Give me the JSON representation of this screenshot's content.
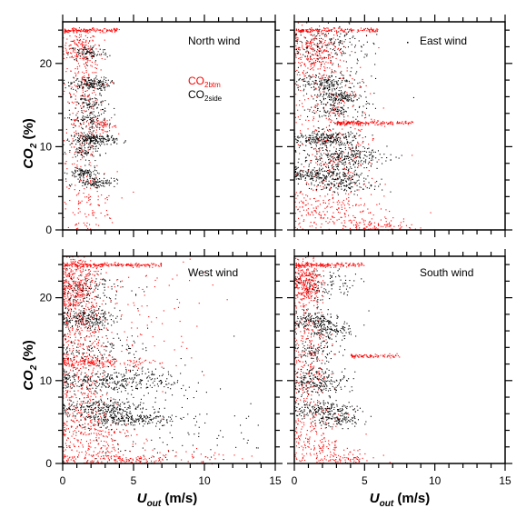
{
  "chart_data": {
    "type": "scatter",
    "xlabel_main": "U",
    "xlabel_sub": "out",
    "xlabel_unit": " (m/s)",
    "ylabel_main": "CO",
    "ylabel_sub": "2",
    "ylabel_unit": " (%)",
    "xlim": [
      0,
      15
    ],
    "ylim": [
      0,
      25
    ],
    "xticks": [
      0,
      5,
      10,
      15
    ],
    "yticks": [
      0,
      10,
      20
    ],
    "colors": {
      "btm": "#ff0000",
      "side": "#000000"
    },
    "legend": {
      "btm_main": "CO",
      "btm_sub": "2btm",
      "side_main": "CO",
      "side_sub": "2side",
      "placement": "top-panel North wind, right"
    },
    "panels": [
      {
        "title": "North wind",
        "side": [
          {
            "x": 1.8,
            "y": 21.3,
            "sx": 0.7,
            "sy": 0.5,
            "n": 90
          },
          {
            "x": 1.9,
            "y": 17.6,
            "sx": 0.7,
            "sy": 0.4,
            "n": 170
          },
          {
            "x": 2.0,
            "y": 15.2,
            "sx": 0.7,
            "sy": 0.6,
            "n": 80
          },
          {
            "x": 1.8,
            "y": 13.3,
            "sx": 0.7,
            "sy": 0.5,
            "n": 90
          },
          {
            "x": 2.2,
            "y": 10.9,
            "sx": 0.8,
            "sy": 0.35,
            "n": 210
          },
          {
            "x": 1.6,
            "y": 9.4,
            "sx": 0.6,
            "sy": 0.4,
            "n": 60
          },
          {
            "x": 1.4,
            "y": 6.9,
            "sx": 0.5,
            "sy": 0.35,
            "n": 90
          },
          {
            "x": 2.3,
            "y": 5.8,
            "sx": 0.7,
            "sy": 0.3,
            "n": 110
          }
        ],
        "btm": [
          {
            "x": 1.2,
            "y": 22.0,
            "sx": 0.6,
            "sy": 0.9,
            "n": 120
          },
          {
            "x": 1.5,
            "y": 18.5,
            "sx": 0.7,
            "sy": 2.5,
            "n": 150
          },
          {
            "x": 2.8,
            "y": 12.5,
            "sx": 0.5,
            "sy": 0.35,
            "n": 60
          },
          {
            "x": 1.3,
            "y": 11.0,
            "sx": 0.7,
            "sy": 3.0,
            "n": 130
          },
          {
            "x": 1.8,
            "y": 3.0,
            "sx": 1.0,
            "sy": 2.0,
            "n": 120
          }
        ],
        "lines": [
          {
            "x0": 0.1,
            "x1": 4.0,
            "y": 24.0,
            "n": 150
          }
        ]
      },
      {
        "title": "East wind",
        "side": [
          {
            "x": 2.5,
            "y": 22.5,
            "sx": 1.5,
            "sy": 1.0,
            "n": 120
          },
          {
            "x": 2.0,
            "y": 17.8,
            "sx": 1.0,
            "sy": 0.5,
            "n": 160
          },
          {
            "x": 3.0,
            "y": 16.0,
            "sx": 0.8,
            "sy": 0.4,
            "n": 130
          },
          {
            "x": 3.2,
            "y": 14.5,
            "sx": 1.0,
            "sy": 0.6,
            "n": 110
          },
          {
            "x": 2.2,
            "y": 11.0,
            "sx": 1.2,
            "sy": 0.5,
            "n": 260
          },
          {
            "x": 3.5,
            "y": 8.8,
            "sx": 1.5,
            "sy": 0.6,
            "n": 250
          },
          {
            "x": 2.0,
            "y": 6.8,
            "sx": 1.3,
            "sy": 0.5,
            "n": 230
          },
          {
            "x": 3.5,
            "y": 5.5,
            "sx": 1.4,
            "sy": 0.5,
            "n": 140
          },
          {
            "x": 3.0,
            "y": 20.0,
            "sx": 1.8,
            "sy": 3.0,
            "n": 90
          }
        ],
        "btm": [
          {
            "x": 1.5,
            "y": 21.5,
            "sx": 1.0,
            "sy": 1.6,
            "n": 260
          },
          {
            "x": 2.5,
            "y": 15.0,
            "sx": 1.4,
            "sy": 4.0,
            "n": 210
          },
          {
            "x": 3.0,
            "y": 8.0,
            "sx": 1.5,
            "sy": 3.0,
            "n": 170
          },
          {
            "x": 2.5,
            "y": 2.0,
            "sx": 2.0,
            "sy": 1.5,
            "n": 230
          },
          {
            "x": 6.0,
            "y": 0.4,
            "sx": 1.2,
            "sy": 0.4,
            "n": 110
          }
        ],
        "lines": [
          {
            "x0": 0.1,
            "x1": 6.0,
            "y": 24.0,
            "n": 150
          },
          {
            "x0": 3.0,
            "x1": 8.5,
            "y": 12.9,
            "n": 200
          }
        ]
      },
      {
        "title": "West wind",
        "side": [
          {
            "x": 1.8,
            "y": 21.0,
            "sx": 1.5,
            "sy": 1.0,
            "n": 130
          },
          {
            "x": 1.6,
            "y": 17.5,
            "sx": 1.0,
            "sy": 0.6,
            "n": 220
          },
          {
            "x": 2.5,
            "y": 14.0,
            "sx": 1.8,
            "sy": 1.0,
            "n": 110
          },
          {
            "x": 3.5,
            "y": 10.0,
            "sx": 2.5,
            "sy": 0.7,
            "n": 330
          },
          {
            "x": 2.5,
            "y": 6.8,
            "sx": 1.5,
            "sy": 0.5,
            "n": 220
          },
          {
            "x": 4.5,
            "y": 5.5,
            "sx": 1.8,
            "sy": 0.5,
            "n": 270
          },
          {
            "x": 6.5,
            "y": 4.5,
            "sx": 3.5,
            "sy": 4.0,
            "n": 160
          }
        ],
        "btm": [
          {
            "x": 1.0,
            "y": 21.5,
            "sx": 0.8,
            "sy": 2.2,
            "n": 420
          },
          {
            "x": 1.3,
            "y": 14.0,
            "sx": 1.0,
            "sy": 3.0,
            "n": 230
          },
          {
            "x": 2.5,
            "y": 12.3,
            "sx": 2.0,
            "sy": 0.3,
            "n": 170
          },
          {
            "x": 1.3,
            "y": 8.0,
            "sx": 1.0,
            "sy": 3.0,
            "n": 200
          },
          {
            "x": 2.0,
            "y": 3.0,
            "sx": 1.5,
            "sy": 2.0,
            "n": 250
          },
          {
            "x": 5.0,
            "y": 0.5,
            "sx": 3.0,
            "sy": 0.5,
            "n": 200
          },
          {
            "x": 4.5,
            "y": 18.0,
            "sx": 3.0,
            "sy": 4.0,
            "n": 120
          }
        ],
        "lines": [
          {
            "x0": 0.1,
            "x1": 7.0,
            "y": 24.0,
            "n": 220
          }
        ]
      },
      {
        "title": "South wind",
        "side": [
          {
            "x": 2.2,
            "y": 21.5,
            "sx": 1.2,
            "sy": 1.0,
            "n": 100
          },
          {
            "x": 1.5,
            "y": 17.3,
            "sx": 0.8,
            "sy": 0.6,
            "n": 160
          },
          {
            "x": 2.5,
            "y": 16.0,
            "sx": 0.8,
            "sy": 0.5,
            "n": 110
          },
          {
            "x": 1.5,
            "y": 13.5,
            "sx": 0.8,
            "sy": 0.6,
            "n": 90
          },
          {
            "x": 1.8,
            "y": 10.0,
            "sx": 1.0,
            "sy": 0.8,
            "n": 210
          },
          {
            "x": 2.0,
            "y": 6.5,
            "sx": 1.2,
            "sy": 0.6,
            "n": 190
          },
          {
            "x": 3.0,
            "y": 5.2,
            "sx": 1.0,
            "sy": 0.4,
            "n": 90
          }
        ],
        "btm": [
          {
            "x": 0.8,
            "y": 22.0,
            "sx": 0.5,
            "sy": 1.5,
            "n": 330
          },
          {
            "x": 1.0,
            "y": 15.0,
            "sx": 0.7,
            "sy": 3.0,
            "n": 160
          },
          {
            "x": 1.0,
            "y": 8.0,
            "sx": 0.8,
            "sy": 3.0,
            "n": 150
          },
          {
            "x": 1.5,
            "y": 2.5,
            "sx": 1.2,
            "sy": 1.8,
            "n": 180
          },
          {
            "x": 3.5,
            "y": 0.5,
            "sx": 1.2,
            "sy": 0.4,
            "n": 80
          }
        ],
        "lines": [
          {
            "x0": 0.1,
            "x1": 5.0,
            "y": 24.0,
            "n": 150
          },
          {
            "x0": 4.0,
            "x1": 7.5,
            "y": 13.0,
            "n": 90
          }
        ]
      }
    ]
  }
}
